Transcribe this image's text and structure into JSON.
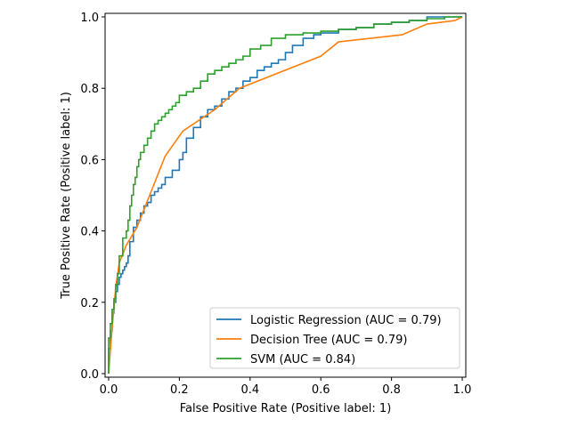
{
  "chart_data": {
    "type": "line",
    "title": "",
    "xlabel": "False Positive Rate (Positive label: 1)",
    "ylabel": "True Positive Rate (Positive label: 1)",
    "xlim": [
      -0.01,
      1.01
    ],
    "ylim": [
      -0.01,
      1.01
    ],
    "xticks": [
      0.0,
      0.2,
      0.4,
      0.6,
      0.8,
      1.0
    ],
    "yticks": [
      0.0,
      0.2,
      0.4,
      0.6,
      0.8,
      1.0
    ],
    "xtick_labels": [
      "0.0",
      "0.2",
      "0.4",
      "0.6",
      "0.8",
      "1.0"
    ],
    "ytick_labels": [
      "0.0",
      "0.2",
      "0.4",
      "0.6",
      "0.8",
      "1.0"
    ],
    "grid": false,
    "legend_position": "lower-right",
    "series": [
      {
        "name": "Logistic Regression (AUC = 0.79)",
        "color": "#1f77b4",
        "step": true,
        "x": [
          0.0,
          0.0,
          0.005,
          0.01,
          0.015,
          0.02,
          0.025,
          0.03,
          0.035,
          0.04,
          0.045,
          0.05,
          0.055,
          0.06,
          0.07,
          0.08,
          0.09,
          0.1,
          0.11,
          0.12,
          0.13,
          0.14,
          0.15,
          0.16,
          0.18,
          0.2,
          0.21,
          0.22,
          0.24,
          0.26,
          0.28,
          0.3,
          0.32,
          0.34,
          0.36,
          0.38,
          0.4,
          0.42,
          0.44,
          0.46,
          0.48,
          0.5,
          0.52,
          0.55,
          0.58,
          0.6,
          0.65,
          0.7,
          0.75,
          0.8,
          0.85,
          0.9,
          0.95,
          1.0
        ],
        "y": [
          0.0,
          0.03,
          0.07,
          0.12,
          0.17,
          0.2,
          0.23,
          0.25,
          0.27,
          0.28,
          0.29,
          0.3,
          0.31,
          0.33,
          0.37,
          0.41,
          0.43,
          0.45,
          0.47,
          0.48,
          0.5,
          0.51,
          0.52,
          0.53,
          0.55,
          0.57,
          0.6,
          0.62,
          0.66,
          0.69,
          0.72,
          0.74,
          0.75,
          0.77,
          0.79,
          0.8,
          0.82,
          0.83,
          0.85,
          0.86,
          0.87,
          0.88,
          0.9,
          0.92,
          0.94,
          0.95,
          0.955,
          0.965,
          0.97,
          0.98,
          0.985,
          0.99,
          1.0,
          1.0
        ]
      },
      {
        "name": "Decision Tree (AUC = 0.79)",
        "color": "#ff7f0e",
        "step": false,
        "x": [
          0.0,
          0.01,
          0.02,
          0.03,
          0.05,
          0.08,
          0.1,
          0.12,
          0.16,
          0.21,
          0.27,
          0.3,
          0.37,
          0.6,
          0.65,
          0.83,
          0.9,
          0.98,
          1.0
        ],
        "y": [
          0.0,
          0.13,
          0.24,
          0.31,
          0.36,
          0.41,
          0.46,
          0.51,
          0.61,
          0.68,
          0.72,
          0.74,
          0.8,
          0.89,
          0.93,
          0.95,
          0.98,
          0.99,
          1.0
        ]
      },
      {
        "name": "SVM (AUC = 0.84)",
        "color": "#2ca02c",
        "step": true,
        "x": [
          0.0,
          0.0,
          0.005,
          0.01,
          0.015,
          0.02,
          0.025,
          0.03,
          0.04,
          0.05,
          0.055,
          0.06,
          0.065,
          0.07,
          0.075,
          0.08,
          0.085,
          0.09,
          0.1,
          0.11,
          0.12,
          0.13,
          0.14,
          0.15,
          0.16,
          0.17,
          0.18,
          0.19,
          0.2,
          0.22,
          0.24,
          0.26,
          0.28,
          0.3,
          0.32,
          0.34,
          0.36,
          0.38,
          0.4,
          0.43,
          0.46,
          0.5,
          0.55,
          0.6,
          0.65,
          0.7,
          0.75,
          0.8,
          0.85,
          0.9,
          0.95,
          1.0
        ],
        "y": [
          0.0,
          0.05,
          0.1,
          0.14,
          0.18,
          0.21,
          0.25,
          0.28,
          0.33,
          0.38,
          0.4,
          0.43,
          0.47,
          0.5,
          0.53,
          0.55,
          0.58,
          0.6,
          0.62,
          0.64,
          0.66,
          0.68,
          0.7,
          0.71,
          0.72,
          0.73,
          0.74,
          0.75,
          0.76,
          0.78,
          0.79,
          0.8,
          0.82,
          0.84,
          0.85,
          0.86,
          0.87,
          0.88,
          0.89,
          0.91,
          0.92,
          0.94,
          0.95,
          0.955,
          0.96,
          0.965,
          0.97,
          0.98,
          0.985,
          0.99,
          0.995,
          1.0
        ]
      }
    ]
  }
}
